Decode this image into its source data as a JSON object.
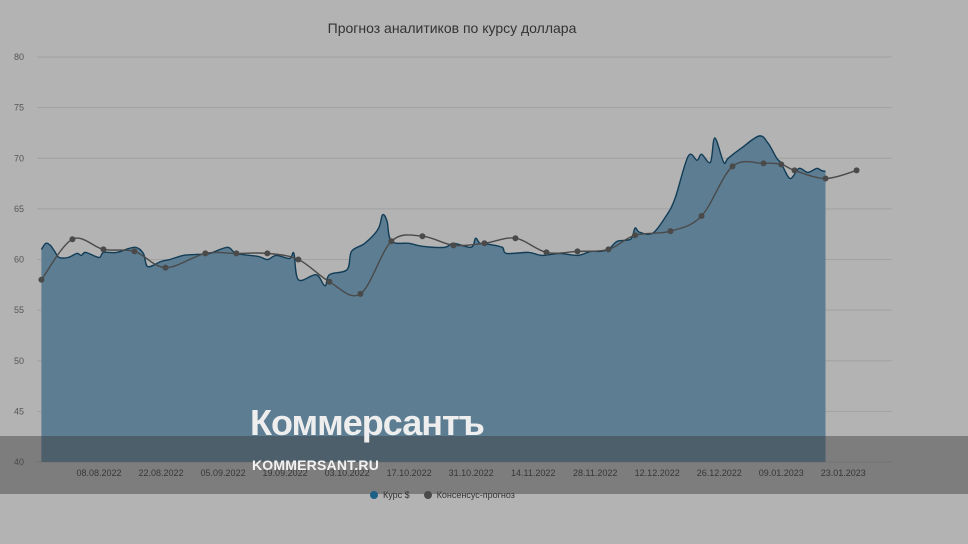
{
  "chart_data": {
    "type": "area",
    "title": "Прогноз аналитиков по курсу доллара",
    "ylim": [
      40,
      80
    ],
    "yticks": [
      "80",
      "75",
      "70",
      "65",
      "60",
      "55",
      "50",
      "45",
      "40"
    ],
    "xlim": [
      "2022-07-25",
      "2023-02-03"
    ],
    "xticks": [
      {
        "date": "2022-08-08",
        "label": "08.08.2022"
      },
      {
        "date": "2022-08-22",
        "label": "22.08.2022"
      },
      {
        "date": "2022-09-05",
        "label": "05.09.2022"
      },
      {
        "date": "2022-09-19",
        "label": "19.09.2022"
      },
      {
        "date": "2022-10-03",
        "label": "03.10.2022"
      },
      {
        "date": "2022-10-17",
        "label": "17.10.2022"
      },
      {
        "date": "2022-10-31",
        "label": "31.10.2022"
      },
      {
        "date": "2022-11-14",
        "label": "14.11.2022"
      },
      {
        "date": "2022-11-28",
        "label": "28.11.2022"
      },
      {
        "date": "2022-12-12",
        "label": "12.12.2022"
      },
      {
        "date": "2022-12-26",
        "label": "26.12.2022"
      },
      {
        "date": "2023-01-09",
        "label": "09.01.2023"
      },
      {
        "date": "2023-01-23",
        "label": "23.01.2023"
      }
    ],
    "grid": true,
    "legend_position": "bottom-center",
    "series": [
      {
        "name": "Курс $",
        "color": "#1e5f86",
        "points": [
          [
            "2022-07-26",
            61.0
          ],
          [
            "2022-07-27",
            61.6
          ],
          [
            "2022-07-28",
            61.4
          ],
          [
            "2022-07-29",
            60.8
          ],
          [
            "2022-07-30",
            60.2
          ],
          [
            "2022-08-01",
            60.2
          ],
          [
            "2022-08-03",
            60.6
          ],
          [
            "2022-08-04",
            60.4
          ],
          [
            "2022-08-05",
            60.7
          ],
          [
            "2022-08-08",
            60.2
          ],
          [
            "2022-08-09",
            60.7
          ],
          [
            "2022-08-12",
            60.7
          ],
          [
            "2022-08-16",
            61.2
          ],
          [
            "2022-08-18",
            60.6
          ],
          [
            "2022-08-19",
            59.3
          ],
          [
            "2022-08-22",
            59.8
          ],
          [
            "2022-08-24",
            60.0
          ],
          [
            "2022-08-27",
            60.4
          ],
          [
            "2022-08-30",
            60.5
          ],
          [
            "2022-09-02",
            60.6
          ],
          [
            "2022-09-06",
            61.2
          ],
          [
            "2022-09-08",
            60.6
          ],
          [
            "2022-09-13",
            60.3
          ],
          [
            "2022-09-15",
            60.0
          ],
          [
            "2022-09-17",
            60.4
          ],
          [
            "2022-09-20",
            60.1
          ],
          [
            "2022-09-21",
            60.6
          ],
          [
            "2022-09-22",
            58.0
          ],
          [
            "2022-09-26",
            58.5
          ],
          [
            "2022-09-28",
            57.4
          ],
          [
            "2022-09-29",
            58.5
          ],
          [
            "2022-10-03",
            59.0
          ],
          [
            "2022-10-04",
            60.8
          ],
          [
            "2022-10-07",
            61.6
          ],
          [
            "2022-10-10",
            63.0
          ],
          [
            "2022-10-11",
            64.4
          ],
          [
            "2022-10-12",
            63.8
          ],
          [
            "2022-10-13",
            61.8
          ],
          [
            "2022-10-17",
            61.6
          ],
          [
            "2022-10-20",
            61.3
          ],
          [
            "2022-10-25",
            61.2
          ],
          [
            "2022-10-27",
            61.6
          ],
          [
            "2022-10-31",
            61.2
          ],
          [
            "2022-11-01",
            62.1
          ],
          [
            "2022-11-02",
            61.6
          ],
          [
            "2022-11-04",
            61.5
          ],
          [
            "2022-11-07",
            61.2
          ],
          [
            "2022-11-08",
            60.6
          ],
          [
            "2022-11-13",
            60.7
          ],
          [
            "2022-11-16",
            60.4
          ],
          [
            "2022-11-20",
            60.6
          ],
          [
            "2022-11-24",
            60.4
          ],
          [
            "2022-11-27",
            60.8
          ],
          [
            "2022-11-29",
            60.8
          ],
          [
            "2022-12-01",
            61.0
          ],
          [
            "2022-12-03",
            61.8
          ],
          [
            "2022-12-06",
            62.0
          ],
          [
            "2022-12-07",
            63.1
          ],
          [
            "2022-12-08",
            62.7
          ],
          [
            "2022-12-11",
            62.6
          ],
          [
            "2022-12-14",
            64.3
          ],
          [
            "2022-12-16",
            66.0
          ],
          [
            "2022-12-19",
            70.2
          ],
          [
            "2022-12-21",
            69.8
          ],
          [
            "2022-12-22",
            70.4
          ],
          [
            "2022-12-24",
            69.6
          ],
          [
            "2022-12-25",
            72.0
          ],
          [
            "2022-12-27",
            69.6
          ],
          [
            "2022-12-28",
            70.0
          ],
          [
            "2022-12-31",
            71.0
          ],
          [
            "2023-01-04",
            72.2
          ],
          [
            "2023-01-06",
            71.5
          ],
          [
            "2023-01-08",
            70.0
          ],
          [
            "2023-01-09",
            69.5
          ],
          [
            "2023-01-11",
            68.0
          ],
          [
            "2023-01-13",
            69.0
          ],
          [
            "2023-01-15",
            68.6
          ],
          [
            "2023-01-17",
            69.0
          ],
          [
            "2023-01-18",
            68.8
          ],
          [
            "2023-01-19",
            68.7
          ]
        ]
      },
      {
        "name": "Консенсус-прогноз",
        "color": "#4a4a4a",
        "points": [
          [
            "2022-07-26",
            58.0
          ],
          [
            "2022-08-02",
            62.0
          ],
          [
            "2022-08-09",
            61.0
          ],
          [
            "2022-08-16",
            60.8
          ],
          [
            "2022-08-23",
            59.2
          ],
          [
            "2022-09-01",
            60.6
          ],
          [
            "2022-09-08",
            60.6
          ],
          [
            "2022-09-15",
            60.6
          ],
          [
            "2022-09-22",
            60.0
          ],
          [
            "2022-09-29",
            57.8
          ],
          [
            "2022-10-06",
            56.6
          ],
          [
            "2022-10-13",
            61.8
          ],
          [
            "2022-10-20",
            62.3
          ],
          [
            "2022-10-27",
            61.4
          ],
          [
            "2022-11-03",
            61.6
          ],
          [
            "2022-11-10",
            62.1
          ],
          [
            "2022-11-17",
            60.7
          ],
          [
            "2022-11-24",
            60.8
          ],
          [
            "2022-12-01",
            61.0
          ],
          [
            "2022-12-07",
            62.4
          ],
          [
            "2022-12-15",
            62.8
          ],
          [
            "2022-12-22",
            64.3
          ],
          [
            "2022-12-29",
            69.2
          ],
          [
            "2023-01-05",
            69.5
          ],
          [
            "2023-01-09",
            69.4
          ],
          [
            "2023-01-12",
            68.8
          ],
          [
            "2023-01-19",
            68.0
          ],
          [
            "2023-01-26",
            68.8
          ]
        ]
      }
    ]
  },
  "watermark": {
    "logo": "Коммерсантъ",
    "site": "KOMMERSANT.RU"
  }
}
